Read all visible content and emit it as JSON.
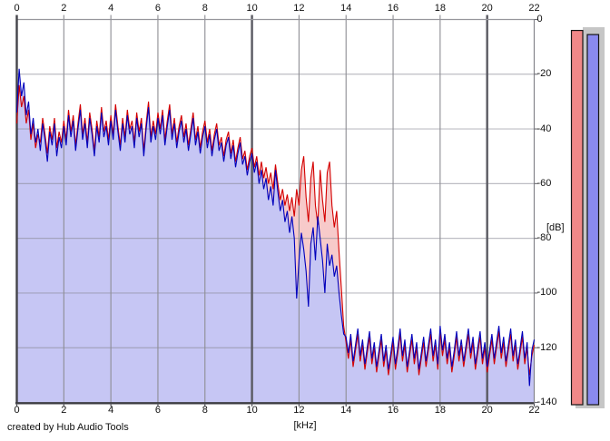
{
  "footer": {
    "credit": "created by Hub Audio Tools"
  },
  "chart_data": {
    "type": "line",
    "title": "",
    "xlabel": "[kHz]",
    "ylabel": "[dB]",
    "xlim": [
      0,
      22
    ],
    "ylim": [
      -140,
      0
    ],
    "x_ticks": [
      0,
      2,
      4,
      6,
      8,
      10,
      12,
      14,
      16,
      18,
      20,
      22
    ],
    "y_ticks": [
      0,
      -20,
      -40,
      -60,
      -80,
      -100,
      -120,
      -140
    ],
    "x_major_lines": [
      10,
      20
    ],
    "grid": true,
    "legend_position": "none",
    "f_start": 0.0,
    "f_step": 0.1,
    "series": [
      {
        "name": "red-spectrum",
        "color": "#d40000",
        "fill": "#f7caca",
        "values": [
          -38,
          -24,
          -32,
          -28,
          -38,
          -33,
          -44,
          -38,
          -47,
          -42,
          -45,
          -36,
          -42,
          -49,
          -39,
          -44,
          -36,
          -47,
          -41,
          -45,
          -37,
          -44,
          -33,
          -41,
          -35,
          -46,
          -38,
          -31,
          -42,
          -36,
          -45,
          -34,
          -40,
          -48,
          -37,
          -43,
          -32,
          -41,
          -37,
          -44,
          -35,
          -42,
          -31,
          -39,
          -46,
          -36,
          -43,
          -33,
          -40,
          -37,
          -45,
          -34,
          -41,
          -36,
          -48,
          -38,
          -30,
          -43,
          -37,
          -42,
          -34,
          -40,
          -33,
          -44,
          -37,
          -31,
          -42,
          -36,
          -45,
          -39,
          -35,
          -43,
          -38,
          -46,
          -40,
          -34,
          -44,
          -39,
          -47,
          -41,
          -37,
          -45,
          -40,
          -48,
          -42,
          -38,
          -46,
          -43,
          -50,
          -44,
          -41,
          -49,
          -44,
          -52,
          -47,
          -43,
          -51,
          -48,
          -55,
          -50,
          -47,
          -54,
          -50,
          -57,
          -52,
          -58,
          -54,
          -60,
          -56,
          -62,
          -53,
          -60,
          -66,
          -62,
          -68,
          -64,
          -70,
          -65,
          -72,
          -62,
          -68,
          -55,
          -50,
          -65,
          -74,
          -58,
          -52,
          -68,
          -75,
          -55,
          -66,
          -74,
          -56,
          -52,
          -68,
          -76,
          -70,
          -85,
          -98,
          -112,
          -118,
          -124,
          -117,
          -127,
          -121,
          -115,
          -125,
          -119,
          -128,
          -122,
          -116,
          -126,
          -120,
          -129,
          -123,
          -117,
          -127,
          -121,
          -130,
          -124,
          -118,
          -128,
          -122,
          -115,
          -125,
          -119,
          -129,
          -123,
          -117,
          -126,
          -120,
          -130,
          -124,
          -118,
          -127,
          -121,
          -115,
          -125,
          -119,
          -128,
          -114,
          -123,
          -117,
          -126,
          -120,
          -129,
          -123,
          -116,
          -125,
          -119,
          -127,
          -121,
          -115,
          -124,
          -118,
          -128,
          -122,
          -116,
          -126,
          -120,
          -129,
          -123,
          -117,
          -126,
          -120,
          -114,
          -124,
          -118,
          -127,
          -121,
          -115,
          -125,
          -119,
          -128,
          -122,
          -116,
          -126,
          -120,
          -130,
          -123,
          -119
        ]
      },
      {
        "name": "blue-spectrum",
        "color": "#0000bc",
        "fill": "#c6c6f4",
        "values": [
          -34,
          -18,
          -28,
          -23,
          -35,
          -30,
          -42,
          -36,
          -45,
          -40,
          -48,
          -38,
          -44,
          -52,
          -41,
          -46,
          -38,
          -50,
          -43,
          -47,
          -39,
          -46,
          -35,
          -43,
          -37,
          -48,
          -40,
          -33,
          -44,
          -38,
          -47,
          -36,
          -42,
          -50,
          -39,
          -45,
          -34,
          -43,
          -39,
          -46,
          -37,
          -44,
          -33,
          -41,
          -48,
          -38,
          -45,
          -35,
          -42,
          -39,
          -47,
          -36,
          -43,
          -38,
          -50,
          -40,
          -32,
          -45,
          -39,
          -44,
          -36,
          -42,
          -35,
          -46,
          -39,
          -33,
          -44,
          -38,
          -47,
          -41,
          -37,
          -45,
          -40,
          -48,
          -42,
          -36,
          -46,
          -41,
          -49,
          -43,
          -39,
          -47,
          -42,
          -50,
          -44,
          -40,
          -48,
          -45,
          -52,
          -46,
          -43,
          -51,
          -46,
          -54,
          -49,
          -45,
          -53,
          -50,
          -57,
          -52,
          -49,
          -56,
          -52,
          -60,
          -55,
          -62,
          -58,
          -66,
          -61,
          -68,
          -55,
          -63,
          -70,
          -66,
          -74,
          -70,
          -78,
          -72,
          -80,
          -102,
          -88,
          -78,
          -84,
          -92,
          -105,
          -82,
          -76,
          -88,
          -72,
          -80,
          -88,
          -100,
          -82,
          -90,
          -86,
          -94,
          -90,
          -100,
          -108,
          -115,
          -116,
          -122,
          -115,
          -125,
          -119,
          -113,
          -123,
          -117,
          -126,
          -120,
          -114,
          -124,
          -118,
          -127,
          -121,
          -115,
          -125,
          -119,
          -128,
          -122,
          -116,
          -126,
          -120,
          -113,
          -123,
          -117,
          -127,
          -121,
          -115,
          -124,
          -118,
          -128,
          -122,
          -116,
          -125,
          -119,
          -113,
          -123,
          -117,
          -126,
          -112,
          -121,
          -115,
          -124,
          -118,
          -127,
          -121,
          -114,
          -123,
          -117,
          -125,
          -119,
          -113,
          -122,
          -116,
          -126,
          -120,
          -114,
          -124,
          -118,
          -127,
          -121,
          -115,
          -124,
          -118,
          -112,
          -122,
          -116,
          -125,
          -119,
          -113,
          -123,
          -117,
          -126,
          -120,
          -114,
          -124,
          -118,
          -134,
          -121,
          -117
        ]
      }
    ],
    "meters": [
      {
        "name": "red-peak-meter",
        "color": "#f08888",
        "border": "#151515",
        "peak_db": -4
      },
      {
        "name": "blue-peak-meter",
        "color": "#8a8aef",
        "border": "#151515",
        "peak_db": -5.5
      }
    ],
    "meter_trough_color": "#c6c6c6"
  }
}
